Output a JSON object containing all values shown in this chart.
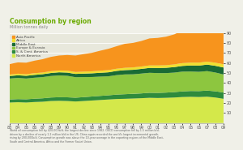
{
  "title": "Consumption by region",
  "subtitle": "Million tonnes daily",
  "regions": [
    "North America",
    "S. & Cent. America",
    "Europe & Eurasia",
    "Middle East",
    "Africa",
    "Asia Pacific"
  ],
  "colors": [
    "#d4e84a",
    "#2e8b3c",
    "#8dc63f",
    "#1a6b35",
    "#f0e030",
    "#f7941d"
  ],
  "years": [
    1983,
    1984,
    1985,
    1986,
    1987,
    1988,
    1989,
    1990,
    1991,
    1992,
    1993,
    1994,
    1995,
    1996,
    1997,
    1998,
    1999,
    2000,
    2001,
    2002,
    2003,
    2004,
    2005,
    2006,
    2007,
    2008,
    2009
  ],
  "data": {
    "North America": [
      20.5,
      20.8,
      20.5,
      21.0,
      21.3,
      22.0,
      22.2,
      22.0,
      21.5,
      22.0,
      22.5,
      23.0,
      23.5,
      24.0,
      24.2,
      24.5,
      24.8,
      25.2,
      25.0,
      25.2,
      25.5,
      26.0,
      26.2,
      26.0,
      26.3,
      25.5,
      24.2
    ],
    "S. & Cent. America": [
      3.0,
      3.1,
      3.2,
      3.3,
      3.4,
      3.5,
      3.6,
      3.7,
      3.8,
      3.9,
      4.0,
      4.1,
      4.2,
      4.4,
      4.6,
      4.7,
      4.8,
      5.0,
      5.1,
      5.2,
      5.4,
      5.6,
      5.8,
      5.9,
      6.1,
      6.2,
      6.3
    ],
    "Europe & Eurasia": [
      21.0,
      21.2,
      20.8,
      21.0,
      21.2,
      21.5,
      21.8,
      21.5,
      20.5,
      20.0,
      19.5,
      19.3,
      19.0,
      19.5,
      19.8,
      19.5,
      19.8,
      20.0,
      19.8,
      19.5,
      19.5,
      19.8,
      19.5,
      19.3,
      19.5,
      18.8,
      18.0
    ],
    "Middle East": [
      2.5,
      2.6,
      2.7,
      2.8,
      2.9,
      3.0,
      3.1,
      3.2,
      3.3,
      3.5,
      3.7,
      3.8,
      4.0,
      4.2,
      4.3,
      4.5,
      4.7,
      4.9,
      5.1,
      5.3,
      5.5,
      5.7,
      6.0,
      6.2,
      6.5,
      6.7,
      7.0
    ],
    "Africa": [
      1.5,
      1.6,
      1.6,
      1.7,
      1.7,
      1.8,
      1.8,
      1.9,
      1.9,
      2.0,
      2.0,
      2.1,
      2.2,
      2.2,
      2.3,
      2.4,
      2.4,
      2.5,
      2.6,
      2.6,
      2.7,
      2.8,
      2.9,
      3.0,
      3.0,
      3.1,
      3.2
    ],
    "Asia Pacific": [
      10.5,
      11.3,
      11.5,
      12.5,
      13.3,
      14.3,
      15.0,
      15.7,
      16.5,
      17.5,
      18.5,
      20.0,
      21.3,
      22.5,
      24.0,
      24.5,
      25.5,
      27.0,
      27.5,
      28.5,
      30.0,
      32.5,
      34.0,
      35.3,
      37.0,
      37.5,
      38.0
    ]
  },
  "ylim": [
    0,
    90
  ],
  "yticks": [
    10,
    20,
    30,
    40,
    50,
    60,
    70,
    80,
    90
  ],
  "bg_color": "#f0f0e8",
  "plot_bg": "#e8e8dc",
  "legend_order": [
    "Asia Pacific",
    "Africa",
    "Middle East",
    "Europe & Eurasia",
    "S. & Cent. America",
    "North America"
  ],
  "legend_colors": [
    "#f7941d",
    "#f0e030",
    "#1a6b35",
    "#8dc63f",
    "#2e8b3c",
    "#d4e84a"
  ],
  "footer": "World oil consumption fell by 420,000b/d, the largest decline since 1982. OECD consumption fell by 1.5 million b/d, driven by a decline of nearly 1.2 million b/d in the US. China again recorded the world's largest incremental growth, rising by 280,000b/d. Consumption growth was above the 10-year average in the exporting regions of the Middle East, South and Central America, Africa and the Former Soviet Union."
}
